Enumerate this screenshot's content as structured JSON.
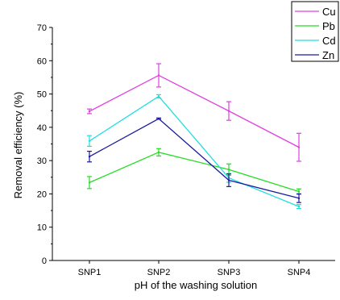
{
  "chart_data": {
    "type": "line",
    "categories": [
      "SNP1",
      "SNP2",
      "SNP3",
      "SNP4"
    ],
    "xlabel": "pH of the washing solution",
    "ylabel": "Removal efficiency (%)",
    "ylim": [
      0,
      70
    ],
    "yticks": [
      0,
      10,
      20,
      30,
      40,
      50,
      60,
      70
    ],
    "grid": false,
    "legend_position": "top-right",
    "series": [
      {
        "name": "Cu",
        "color": "#e040e0",
        "values": [
          44.8,
          55.6,
          44.9,
          34.0
        ],
        "errors": [
          0.7,
          3.5,
          2.8,
          4.2
        ]
      },
      {
        "name": "Pb",
        "color": "#22dd22",
        "values": [
          23.4,
          32.5,
          27.3,
          20.7
        ],
        "errors": [
          1.8,
          1.1,
          1.7,
          0.8
        ]
      },
      {
        "name": "Cd",
        "color": "#22dddd",
        "values": [
          35.9,
          49.3,
          24.8,
          16.2
        ],
        "errors": [
          1.6,
          0.5,
          1.3,
          0.6
        ]
      },
      {
        "name": "Zn",
        "color": "#1a1aa0",
        "values": [
          31.2,
          42.6,
          24.1,
          18.7
        ],
        "errors": [
          1.6,
          0.2,
          1.9,
          1.3
        ]
      }
    ]
  }
}
